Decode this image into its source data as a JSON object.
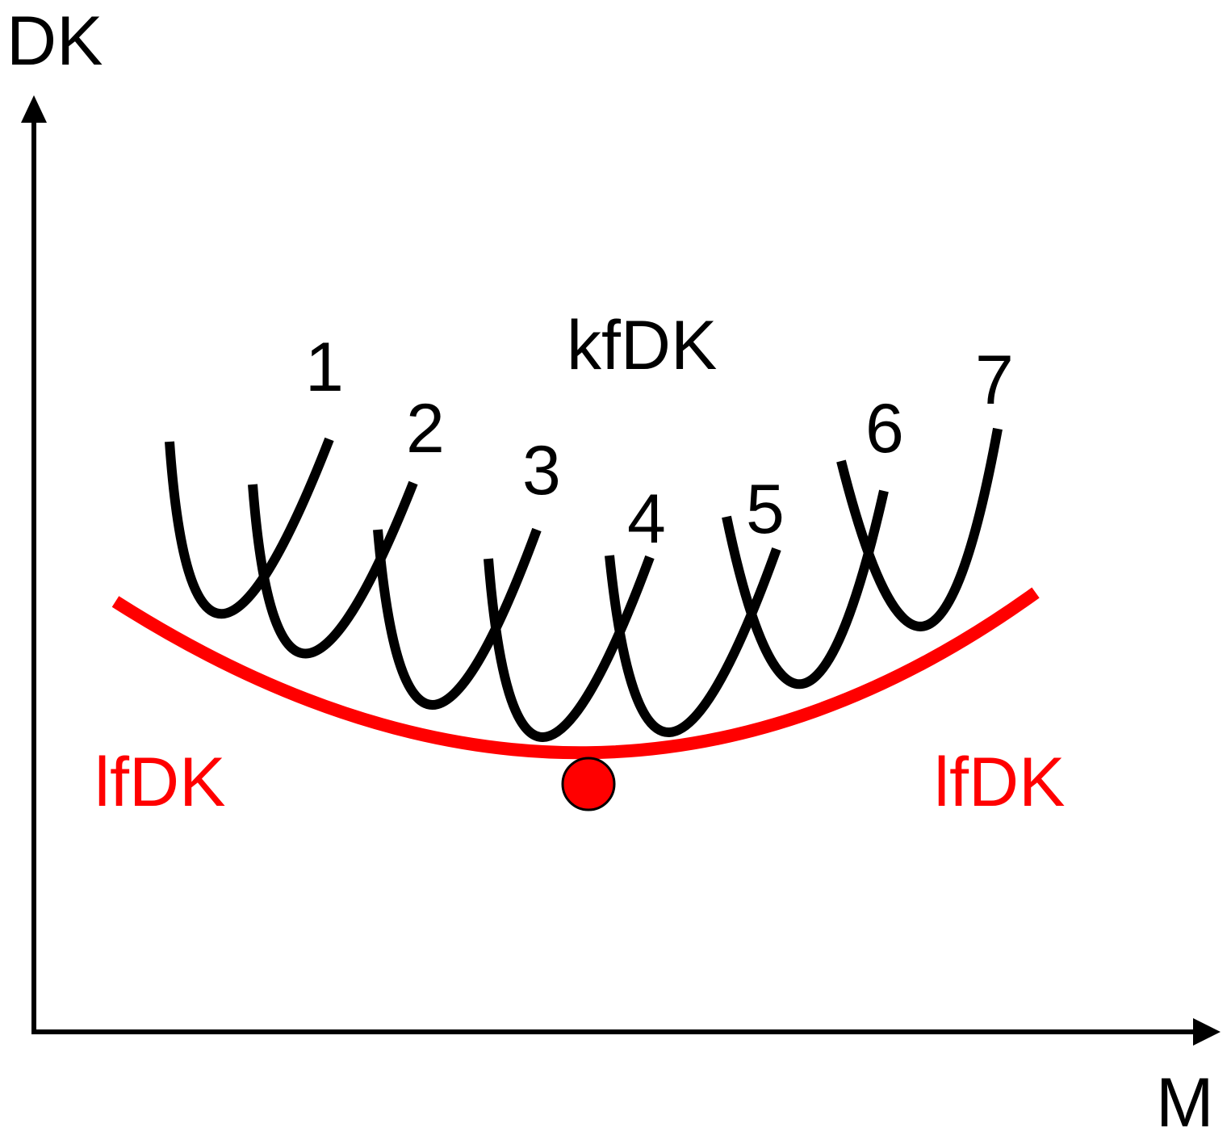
{
  "axes": {
    "y_label": "DK",
    "x_label": "M"
  },
  "short_run_group_label": "kfDK",
  "short_run_curves": [
    "1",
    "2",
    "3",
    "4",
    "5",
    "6",
    "7"
  ],
  "long_run_label_left": "lfDK",
  "long_run_label_right": "lfDK",
  "colors": {
    "axis": "#000000",
    "short_run": "#000000",
    "long_run": "#ff0000",
    "optimum_point": "#ff0000"
  }
}
